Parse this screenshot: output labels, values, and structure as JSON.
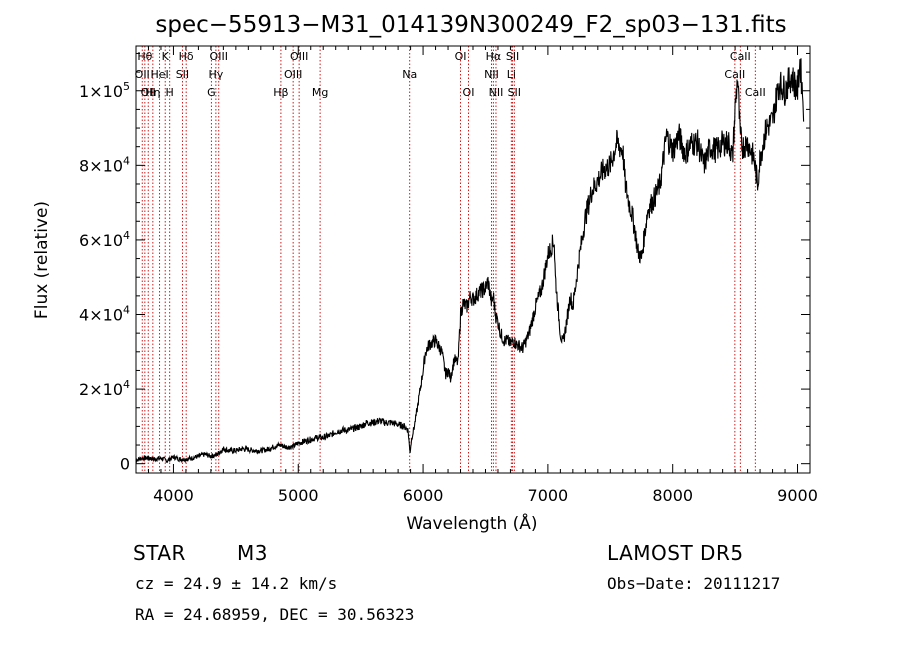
{
  "chart_data": {
    "type": "line",
    "title": "spec−55913−M31_014139N300249_F2_sp03−131.fits",
    "xlabel": "Wavelength (Å)",
    "ylabel": "Flux (relative)",
    "xlim": [
      3700,
      9100
    ],
    "ylim": [
      -2500,
      112000
    ],
    "xticks": [
      {
        "value": 4000,
        "label": "4000"
      },
      {
        "value": 5000,
        "label": "5000"
      },
      {
        "value": 6000,
        "label": "6000"
      },
      {
        "value": 7000,
        "label": "7000"
      },
      {
        "value": 8000,
        "label": "8000"
      },
      {
        "value": 9000,
        "label": "9000"
      }
    ],
    "yticks": [
      {
        "value": 0,
        "mant": "0",
        "exp": ""
      },
      {
        "value": 20000,
        "mant": "2×10",
        "exp": "4"
      },
      {
        "value": 40000,
        "mant": "4×10",
        "exp": "4"
      },
      {
        "value": 60000,
        "mant": "6×10",
        "exp": "4"
      },
      {
        "value": 80000,
        "mant": "8×10",
        "exp": "4"
      },
      {
        "value": 100000,
        "mant": "1×10",
        "exp": "5"
      }
    ],
    "series": [
      {
        "x": [
          3700,
          3750,
          3800,
          3850,
          3900,
          3950,
          4000,
          4050,
          4100,
          4150,
          4200,
          4250,
          4300,
          4350,
          4400,
          4450,
          4500,
          4550,
          4600,
          4650,
          4700,
          4750,
          4800,
          4850,
          4900,
          4950,
          5000,
          5050,
          5100,
          5150,
          5200,
          5250,
          5300,
          5350,
          5400,
          5450,
          5500,
          5550,
          5600,
          5650,
          5700,
          5750,
          5800,
          5850,
          5880,
          5895,
          5910,
          5930,
          5950,
          6000,
          6020,
          6050,
          6100,
          6150,
          6180,
          6200,
          6220,
          6250,
          6280,
          6300,
          6320,
          6350,
          6380,
          6400,
          6450,
          6500,
          6520,
          6550,
          6563,
          6580,
          6600,
          6620,
          6650,
          6680,
          6700,
          6720,
          6750,
          6800,
          6850,
          6900,
          6950,
          7000,
          7050,
          7060,
          7080,
          7100,
          7120,
          7150,
          7180,
          7200,
          7250,
          7300,
          7350,
          7400,
          7450,
          7500,
          7550,
          7600,
          7620,
          7650,
          7680,
          7700,
          7720,
          7750,
          7780,
          7800,
          7850,
          7900,
          7950,
          8000,
          8050,
          8100,
          8150,
          8200,
          8250,
          8300,
          8350,
          8400,
          8450,
          8480,
          8500,
          8520,
          8540,
          8560,
          8600,
          8650,
          8680,
          8700,
          8750,
          8800,
          8850,
          8900,
          8950,
          9000,
          9020,
          9050
        ],
        "y": [
          1000,
          1500,
          1500,
          1200,
          1500,
          800,
          1800,
          1200,
          1200,
          1500,
          2000,
          2500,
          2000,
          2500,
          4000,
          3500,
          3500,
          4000,
          3800,
          3500,
          3500,
          3800,
          4500,
          5000,
          4500,
          4500,
          5500,
          6000,
          6500,
          7000,
          7000,
          7500,
          8500,
          9000,
          9000,
          9500,
          10000,
          11000,
          11000,
          11500,
          11000,
          11000,
          10500,
          10000,
          9000,
          3000,
          7000,
          10000,
          14000,
          25000,
          30000,
          32000,
          33000,
          30000,
          24000,
          25000,
          23000,
          28000,
          27000,
          40000,
          43000,
          42000,
          45000,
          44000,
          46000,
          47000,
          49000,
          43000,
          45000,
          40000,
          38000,
          35000,
          33000,
          33000,
          32000,
          33000,
          32000,
          31000,
          35000,
          42000,
          47000,
          56000,
          60000,
          50000,
          42000,
          35000,
          32000,
          38000,
          45000,
          42000,
          55000,
          66000,
          73000,
          76000,
          79000,
          80000,
          86000,
          84000,
          75000,
          70000,
          66000,
          62000,
          57000,
          55000,
          63000,
          68000,
          71000,
          75000,
          88000,
          84000,
          88000,
          83000,
          86000,
          86000,
          80000,
          85000,
          84000,
          86000,
          86000,
          82000,
          95000,
          104000,
          88000,
          85000,
          86000,
          82000,
          75000,
          82000,
          90000,
          92000,
          102000,
          100000,
          104000,
          100000,
          108000,
          95000
        ]
      }
    ],
    "lines": [
      {
        "x": 3750,
        "label": "OII",
        "row": 1
      },
      {
        "x": 3771,
        "label": "Hθ",
        "row": 0
      },
      {
        "x": 3798,
        "label": "OII",
        "row": 2
      },
      {
        "x": 3835,
        "label": "Hη",
        "row": 2
      },
      {
        "x": 3889,
        "label": "HeI",
        "row": 1
      },
      {
        "x": 3934,
        "label": "K",
        "row": 0
      },
      {
        "x": 3970,
        "label": "H",
        "row": 2
      },
      {
        "x": 4072,
        "label": "SII",
        "row": 1
      },
      {
        "x": 4102,
        "label": "Hδ",
        "row": 0
      },
      {
        "x": 4304,
        "label": "G",
        "row": 2
      },
      {
        "x": 4340,
        "label": "Hγ",
        "row": 1
      },
      {
        "x": 4363,
        "label": "OIII",
        "row": 0
      },
      {
        "x": 4861,
        "label": "Hβ",
        "row": 2
      },
      {
        "x": 4959,
        "label": "OIII",
        "row": 1
      },
      {
        "x": 5007,
        "label": "OIII",
        "row": 0
      },
      {
        "x": 5175,
        "label": "Mg",
        "row": 2
      },
      {
        "x": 5893,
        "label": "Na",
        "row": 1
      },
      {
        "x": 6300,
        "label": "OI",
        "row": 0
      },
      {
        "x": 6364,
        "label": "OI",
        "row": 2
      },
      {
        "x": 6548,
        "label": "NII",
        "row": 1
      },
      {
        "x": 6563,
        "label": "Hα",
        "row": 0
      },
      {
        "x": 6584,
        "label": "NII",
        "row": 2
      },
      {
        "x": 6707,
        "label": "Li",
        "row": 1
      },
      {
        "x": 6717,
        "label": "SII",
        "row": 0
      },
      {
        "x": 6731,
        "label": "SII",
        "row": 2
      },
      {
        "x": 8498,
        "label": "CaII",
        "row": 1
      },
      {
        "x": 8542,
        "label": "CaII",
        "row": 0
      },
      {
        "x": 8662,
        "label": "CaII",
        "row": 2
      }
    ],
    "colors": {
      "spectrum": "#000000",
      "lines": "#cc0000"
    }
  },
  "info": {
    "object_class": "STAR",
    "subclass": "M3",
    "survey": "LAMOST DR5",
    "cz": "cz = 24.9 ± 14.2 km/s",
    "obs_date": "Obs−Date: 20111217",
    "radec": "RA =  24.68959, DEC =  30.56323"
  }
}
